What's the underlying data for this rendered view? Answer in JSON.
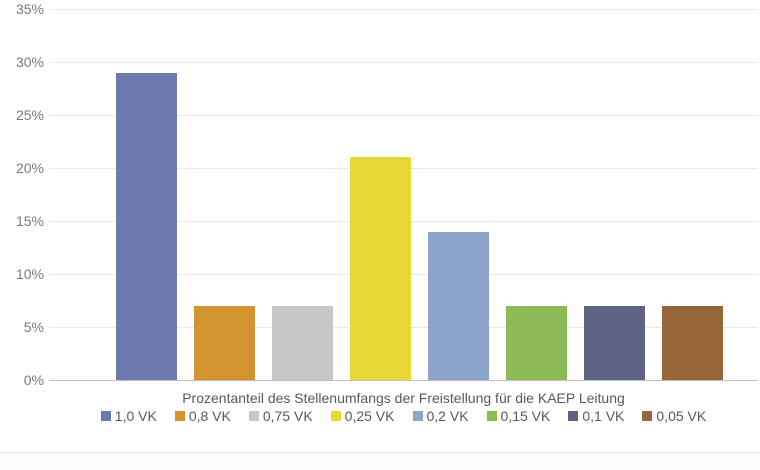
{
  "chart_data": {
    "type": "bar",
    "categories": [
      "1,0 VK",
      "0,8 VK",
      "0,75 VK",
      "0,25 VK",
      "0,2 VK",
      "0,15 VK",
      "0,1 VK",
      "0,05 VK"
    ],
    "values": [
      29,
      7,
      7,
      21,
      14,
      7,
      7,
      7
    ],
    "colors": [
      "#6b79ae",
      "#d29330",
      "#c9c6c6",
      "#e9d735",
      "#8ca3ca",
      "#8dba54",
      "#5e6284",
      "#966538"
    ],
    "title": "Prozentanteil des Stellenumfangs der Freistellung für die KAEP Leitung",
    "xlabel": "Prozentanteil des Stellenumfangs der Freistellung für die KAEP Leitung",
    "ylabel": "",
    "ylim": [
      0,
      35
    ],
    "ytick_step": 5,
    "ytick_labels": [
      "0%",
      "5%",
      "10%",
      "15%",
      "20%",
      "25%",
      "30%",
      "35%"
    ],
    "grid": true,
    "legend_position": "bottom",
    "legend": [
      {
        "label": "1,0 VK",
        "color": "#6b79ae"
      },
      {
        "label": "0,8 VK",
        "color": "#d29330"
      },
      {
        "label": "0,75 VK",
        "color": "#c9c6c6"
      },
      {
        "label": "0,25 VK",
        "color": "#e9d735"
      },
      {
        "label": "0,2 VK",
        "color": "#8ca3ca"
      },
      {
        "label": "0,15 VK",
        "color": "#8dba54"
      },
      {
        "label": "0,1 VK",
        "color": "#5e6284"
      },
      {
        "label": "0,05 VK",
        "color": "#966538"
      }
    ],
    "gridline_color": "#e9e9e9",
    "baseline_color": "#bfbfbf",
    "text_color": "#595959",
    "tick_color": "#7a7a7a"
  }
}
